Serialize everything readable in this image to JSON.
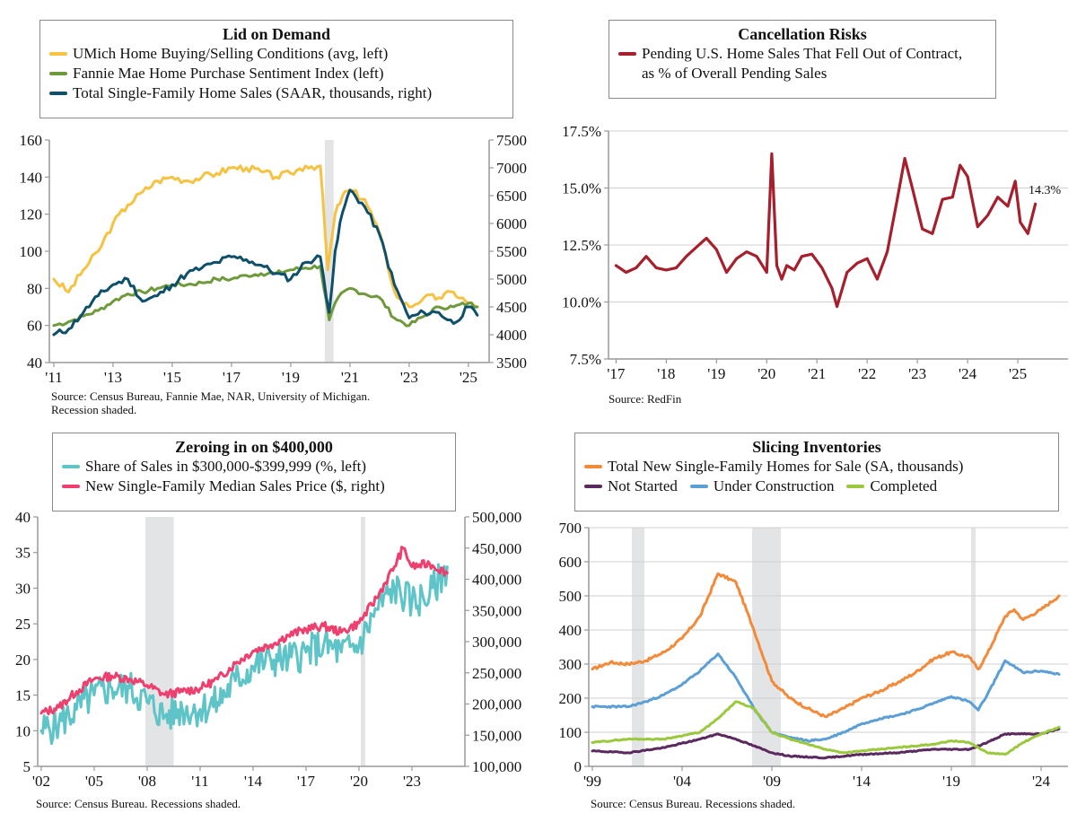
{
  "panels": {
    "lid": {
      "title": "Lid on Demand",
      "legend": [
        {
          "label": "UMich Home Buying/Selling Conditions (avg, left)",
          "color": "#F5C242"
        },
        {
          "label": "Fannie Mae Home Purchase Sentiment Index (left)",
          "color": "#6E9A3C"
        },
        {
          "label": "Total Single-Family Home Sales (SAAR, thousands, right)",
          "color": "#0E4F6B"
        }
      ],
      "source": "Source: Census Bureau, Fannie Mae, NAR, University of Michigan.\nRecession shaded."
    },
    "cancel": {
      "title": "Cancellation Risks",
      "legend": [
        {
          "label": "Pending U.S.  Home Sales That Fell Out of Contract,\nas % of Overall Pending Sales",
          "color": "#A51F2C"
        }
      ],
      "annotation": "14.3%",
      "source": "Source: RedFin"
    },
    "zero": {
      "title": "Zeroing in on $400,000",
      "legend": [
        {
          "label": "Share of Sales in $300,000-$399,999 (%, left)",
          "color": "#5EC4C8"
        },
        {
          "label": "New Single-Family Median Sales Price ($, right)",
          "color": "#EE3F6E"
        }
      ],
      "source": "Source: Census Bureau. Recessions shaded."
    },
    "inv": {
      "title": "Slicing Inventories",
      "legend": [
        {
          "label": "Total New Single-Family Homes for Sale (SA, thousands)",
          "color": "#F28A3A"
        },
        {
          "label": "Not Started",
          "color": "#5A2A5E"
        },
        {
          "label": "Under Construction",
          "color": "#5B9FD6"
        },
        {
          "label": "Completed",
          "color": "#9BC93E"
        }
      ],
      "source": "Source: Census Bureau. Recessions shaded."
    }
  },
  "chart_data": [
    {
      "type": "line",
      "title": "Lid on Demand",
      "xlabel": "",
      "x_ticks": [
        "'11",
        "'13",
        "'15",
        "'17",
        "'19",
        "'21",
        "'23",
        "'25"
      ],
      "y_left": {
        "min": 40,
        "max": 160,
        "ticks": [
          40,
          60,
          80,
          100,
          120,
          140,
          160
        ]
      },
      "y_right": {
        "min": 3500,
        "max": 7500,
        "ticks": [
          3500,
          4000,
          4500,
          5000,
          5500,
          6000,
          6500,
          7000,
          7500
        ]
      },
      "recessions": [
        [
          2020.15,
          2020.45
        ]
      ],
      "series": [
        {
          "name": "UMich Home Buying/Selling Conditions (avg, left)",
          "axis": "left",
          "x": [
            2011,
            2011.5,
            2012,
            2012.5,
            2013,
            2013.5,
            2014,
            2014.5,
            2015,
            2015.5,
            2016,
            2016.5,
            2017,
            2017.5,
            2018,
            2018.5,
            2019,
            2019.5,
            2020,
            2020.25,
            2020.5,
            2020.75,
            2021,
            2021.5,
            2022,
            2022.3,
            2022.6,
            2023,
            2023.5,
            2024,
            2024.5,
            2025,
            2025.3
          ],
          "values": [
            85,
            78,
            90,
            100,
            115,
            125,
            132,
            138,
            140,
            138,
            140,
            142,
            145,
            145,
            143,
            140,
            142,
            146,
            146,
            90,
            120,
            130,
            133,
            128,
            110,
            90,
            75,
            70,
            75,
            75,
            78,
            72,
            70
          ]
        },
        {
          "name": "Fannie Mae Home Purchase Sentiment Index (left)",
          "axis": "left",
          "x": [
            2011,
            2011.5,
            2012,
            2012.5,
            2013,
            2013.5,
            2014,
            2014.5,
            2015,
            2015.5,
            2016,
            2016.5,
            2017,
            2017.5,
            2018,
            2018.5,
            2019,
            2019.5,
            2020,
            2020.3,
            2020.6,
            2021,
            2021.5,
            2022,
            2022.5,
            2023,
            2023.5,
            2024,
            2024.5,
            2025,
            2025.3
          ],
          "values": [
            60,
            62,
            65,
            68,
            73,
            77,
            78,
            80,
            82,
            82,
            83,
            85,
            85,
            87,
            88,
            88,
            90,
            91,
            92,
            63,
            75,
            80,
            77,
            75,
            64,
            60,
            65,
            70,
            70,
            72,
            70
          ]
        },
        {
          "name": "Total Single-Family Home Sales (SAAR, thousands, right)",
          "axis": "right",
          "x": [
            2011,
            2011.5,
            2012,
            2012.5,
            2013,
            2013.5,
            2014,
            2014.5,
            2015,
            2015.5,
            2016,
            2016.5,
            2017,
            2017.5,
            2018,
            2018.5,
            2019,
            2019.5,
            2020,
            2020.3,
            2020.5,
            2020.75,
            2021,
            2021.5,
            2022,
            2022.5,
            2023,
            2023.5,
            2024,
            2024.5,
            2025,
            2025.3
          ],
          "values": [
            4000,
            4100,
            4400,
            4700,
            4900,
            5000,
            4600,
            4700,
            4900,
            5100,
            5200,
            5300,
            5400,
            5350,
            5250,
            5100,
            5000,
            5300,
            5400,
            4400,
            5500,
            6200,
            6600,
            6300,
            5800,
            4900,
            4300,
            4400,
            4400,
            4200,
            4500,
            4350
          ]
        }
      ]
    },
    {
      "type": "line",
      "title": "Cancellation Risks",
      "x_ticks": [
        "'17",
        "'18",
        "'19",
        "'20",
        "'21",
        "'22",
        "'23",
        "'24",
        "'25"
      ],
      "y": {
        "min": 7.5,
        "max": 17.5,
        "ticks": [
          "7.5%",
          "10.0%",
          "12.5%",
          "15.0%",
          "17.5%"
        ]
      },
      "series": [
        {
          "name": "Pending U.S.  Home Sales That Fell Out of Contract, as % of Overall Pending Sales",
          "x": [
            2017.0,
            2017.2,
            2017.4,
            2017.6,
            2017.8,
            2018.0,
            2018.2,
            2018.4,
            2018.6,
            2018.8,
            2019.0,
            2019.2,
            2019.4,
            2019.6,
            2019.8,
            2020.0,
            2020.1,
            2020.2,
            2020.3,
            2020.4,
            2020.55,
            2020.7,
            2020.9,
            2021.1,
            2021.3,
            2021.4,
            2021.6,
            2021.8,
            2022.0,
            2022.2,
            2022.4,
            2022.6,
            2022.75,
            2022.9,
            2023.1,
            2023.3,
            2023.5,
            2023.7,
            2023.85,
            2024.0,
            2024.2,
            2024.4,
            2024.6,
            2024.8,
            2024.95,
            2025.05,
            2025.2,
            2025.35
          ],
          "values": [
            11.6,
            11.3,
            11.5,
            12.0,
            11.5,
            11.4,
            11.5,
            12.0,
            12.4,
            12.8,
            12.3,
            11.3,
            11.9,
            12.2,
            12.0,
            11.3,
            16.5,
            11.6,
            11.0,
            11.6,
            11.4,
            12.0,
            12.1,
            11.5,
            10.6,
            9.8,
            11.3,
            11.7,
            11.9,
            11.0,
            12.2,
            14.5,
            16.3,
            15.0,
            13.2,
            13.0,
            14.5,
            14.6,
            16.0,
            15.5,
            13.3,
            13.8,
            14.6,
            14.2,
            15.3,
            13.5,
            13.0,
            14.3
          ]
        }
      ]
    },
    {
      "type": "line",
      "title": "Zeroing in on $400,000",
      "x_ticks": [
        "'02",
        "'05",
        "'08",
        "'11",
        "'14",
        "'17",
        "'20",
        "'23"
      ],
      "y_left": {
        "min": 5,
        "max": 40,
        "ticks": [
          5,
          10,
          15,
          20,
          25,
          30,
          35,
          40
        ]
      },
      "y_right": {
        "min": 100000,
        "max": 500000,
        "ticks": [
          "100,000",
          "150,000",
          "200,000",
          "250,000",
          "300,000",
          "350,000",
          "400,000",
          "450,000",
          "500,000"
        ]
      },
      "recessions": [
        [
          2007.9,
          2009.5
        ],
        [
          2020.1,
          2020.35
        ]
      ],
      "series": [
        {
          "name": "Share of Sales in $300,000-$399,999 (%, left)",
          "axis": "left",
          "x": [
            2002,
            2003,
            2004,
            2005,
            2006,
            2007,
            2008,
            2009,
            2010,
            2011,
            2012,
            2013,
            2014,
            2015,
            2016,
            2017,
            2018,
            2019,
            2020,
            2021,
            2022,
            2023,
            2024,
            2025
          ],
          "values": [
            10,
            11,
            13,
            15,
            16,
            16,
            14,
            12,
            13,
            13,
            14,
            17,
            19,
            20,
            20,
            21,
            22,
            21,
            22,
            27,
            30,
            28,
            29,
            33
          ]
        },
        {
          "name": "New Single-Family Median Sales Price ($, right)",
          "axis": "right",
          "x": [
            2002,
            2003,
            2004,
            2005,
            2006,
            2007,
            2008,
            2009,
            2010,
            2011,
            2012,
            2013,
            2014,
            2015,
            2016,
            2017,
            2018,
            2019,
            2020,
            2021,
            2022,
            2022.5,
            2023,
            2024,
            2025
          ],
          "values": [
            185000,
            195000,
            220000,
            240000,
            245000,
            240000,
            230000,
            215000,
            220000,
            225000,
            240000,
            265000,
            285000,
            295000,
            310000,
            320000,
            325000,
            315000,
            330000,
            370000,
            420000,
            450000,
            420000,
            425000,
            410000
          ]
        }
      ]
    },
    {
      "type": "line",
      "title": "Slicing Inventories",
      "x_ticks": [
        "'99",
        "'04",
        "'09",
        "'14",
        "'19",
        "'24"
      ],
      "y": {
        "min": 0,
        "max": 700,
        "ticks": [
          0,
          100,
          200,
          300,
          400,
          500,
          600,
          700
        ]
      },
      "recessions": [
        [
          2001.2,
          2001.9
        ],
        [
          2007.9,
          2009.5
        ],
        [
          2020.1,
          2020.35
        ]
      ],
      "series": [
        {
          "name": "Total New Single-Family Homes for Sale (SA, thousands)",
          "x": [
            1999,
            2000,
            2001,
            2002,
            2003,
            2004,
            2005,
            2006,
            2007,
            2008,
            2009,
            2010,
            2011,
            2012,
            2013,
            2014,
            2015,
            2016,
            2017,
            2018,
            2019,
            2020,
            2020.5,
            2021,
            2022,
            2022.5,
            2023,
            2024,
            2025
          ],
          "values": [
            285,
            305,
            300,
            310,
            335,
            375,
            440,
            565,
            540,
            400,
            250,
            200,
            170,
            145,
            170,
            200,
            220,
            245,
            275,
            315,
            335,
            320,
            285,
            330,
            440,
            460,
            430,
            460,
            500
          ]
        },
        {
          "name": "Not Started",
          "x": [
            1999,
            2001,
            2003,
            2005,
            2006,
            2007,
            2008,
            2009,
            2010,
            2012,
            2014,
            2016,
            2018,
            2020,
            2021,
            2022,
            2023,
            2024,
            2025
          ],
          "values": [
            45,
            40,
            55,
            80,
            95,
            80,
            60,
            40,
            30,
            25,
            35,
            40,
            50,
            50,
            70,
            95,
            95,
            95,
            110
          ]
        },
        {
          "name": "Under Construction",
          "x": [
            1999,
            2001,
            2002,
            2003,
            2004,
            2005,
            2006,
            2007,
            2008,
            2009,
            2010,
            2011,
            2012,
            2013,
            2014,
            2015,
            2016,
            2017,
            2018,
            2019,
            2020,
            2020.5,
            2021,
            2022,
            2023,
            2024,
            2025
          ],
          "values": [
            175,
            175,
            190,
            210,
            240,
            280,
            330,
            260,
            170,
            100,
            85,
            75,
            80,
            100,
            125,
            140,
            150,
            165,
            185,
            205,
            190,
            165,
            210,
            310,
            275,
            280,
            270
          ]
        },
        {
          "name": "Completed",
          "x": [
            1999,
            2001,
            2003,
            2005,
            2006,
            2007,
            2008,
            2009,
            2010,
            2011,
            2012,
            2013,
            2014,
            2016,
            2018,
            2019,
            2020,
            2021,
            2022,
            2023,
            2024,
            2025
          ],
          "values": [
            70,
            80,
            80,
            100,
            140,
            190,
            170,
            100,
            80,
            65,
            50,
            40,
            45,
            55,
            65,
            75,
            70,
            40,
            35,
            70,
            95,
            115
          ]
        }
      ]
    }
  ]
}
